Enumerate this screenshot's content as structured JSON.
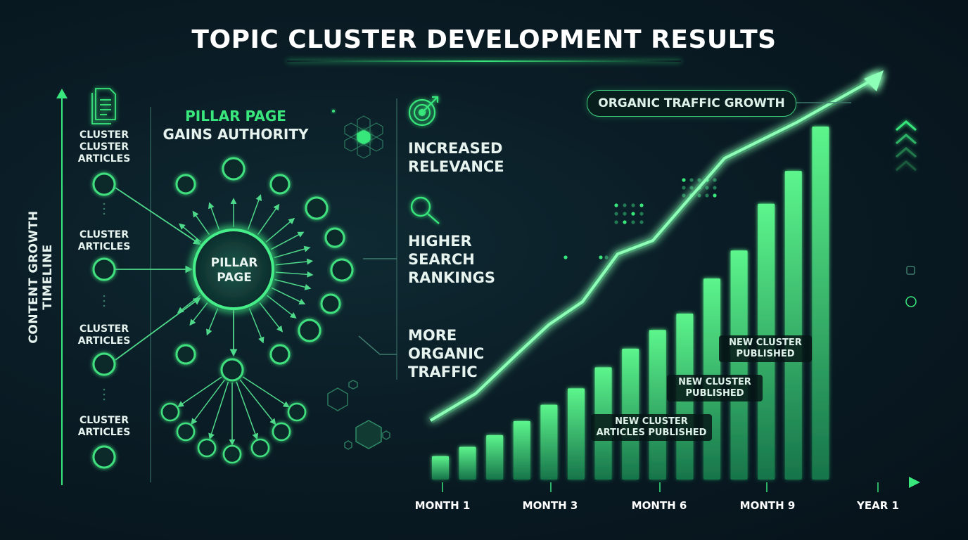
{
  "title": "TOPIC CLUSTER DEVELOPMENT RESULTS",
  "timeline_label": "CONTENT GROWTH TIMELINE",
  "cluster_labels": [
    "CLUSTER\nCLUSTER\nARTICLES",
    "CLUSTER\nARTICLES",
    "CLUSTER\nARTICLES",
    "CLUSTER\nARTICLES"
  ],
  "pillar": {
    "heading_line1": "PILLAR PAGE",
    "heading_line2": "GAINS AUTHORITY",
    "node_label": "PILLAR\nPAGE"
  },
  "benefits": [
    {
      "text": "INCREASED\nRELEVANCE",
      "icon": "target-icon"
    },
    {
      "text": "HIGHER\nSEARCH\nRANKINGS",
      "icon": "magnifier-icon"
    },
    {
      "text": "MORE\nORGANIC\nTRAFFIC",
      "icon": "none"
    }
  ],
  "traffic_label": "ORGANIC TRAFFIC GROWTH",
  "annotations": [
    "NEW CLUSTER\nARTICLES PUBLISHED",
    "NEW CLUSTER\nPUBLISHED",
    "NEW CLUSTER\nPUBLISHED"
  ],
  "colors": {
    "accent": "#39e77c",
    "background": "#0a1c25",
    "bar_top": "#5cf58c",
    "bar_bottom": "#1f8a55"
  },
  "chart_data": {
    "type": "bar",
    "x_tick_labels": [
      "MONTH 1",
      "MONTH 3",
      "MONTH 6",
      "MONTH 9",
      "YEAR 1"
    ],
    "bar_values": [
      5,
      7,
      9.5,
      12.5,
      16,
      19.5,
      24,
      28,
      32,
      35.5,
      43,
      49,
      59,
      66,
      75.5
    ],
    "trend_line": [
      10,
      17,
      27.5,
      35,
      41,
      53.5,
      57,
      68,
      78.5,
      88,
      100
    ],
    "trend_line_label": "ORGANIC TRAFFIC GROWTH",
    "ylim": [
      0,
      100
    ],
    "grid": false,
    "legend": "none",
    "annotations": [
      {
        "text": "NEW CLUSTER\nARTICLES PUBLISHED",
        "near": "MONTH 6"
      },
      {
        "text": "NEW CLUSTER\nPUBLISHED",
        "near": "between MONTH 6 and MONTH 9"
      },
      {
        "text": "NEW CLUSTER\nPUBLISHED",
        "near": "MONTH 9"
      }
    ]
  }
}
